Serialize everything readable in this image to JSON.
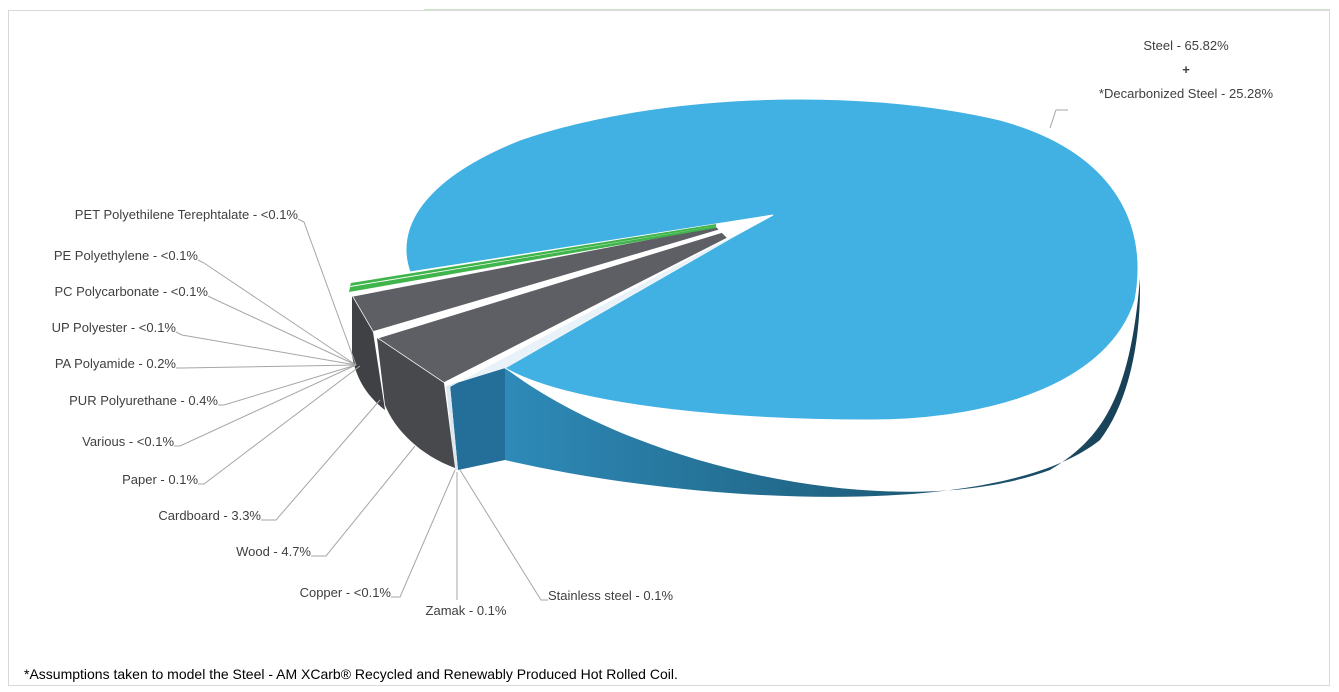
{
  "chart_data": {
    "type": "pie",
    "style": "3d-exploded",
    "slices": [
      {
        "label": "Steel - 65.82%",
        "label2": "+",
        "label3": "*Decarbonized Steel - 25.28%",
        "value": 91.1,
        "color": "#41b0e2"
      },
      {
        "label": "Stainless steel - 0.1%",
        "value": 0.1,
        "color": "#2a7aa8"
      },
      {
        "label": "Zamak - 0.1%",
        "value": 0.1,
        "color": "#8ac6e8"
      },
      {
        "label": "Copper - <0.1%",
        "value": 0.05,
        "color": "#c1d9e8"
      },
      {
        "label": "Wood - 4.7%",
        "value": 4.7,
        "color": "#5d5f64"
      },
      {
        "label": "Cardboard - 3.3%",
        "value": 3.3,
        "color": "#5d5f64"
      },
      {
        "label": "Paper - 0.1%",
        "value": 0.1,
        "color": "#6b6d72"
      },
      {
        "label": "Various - <0.1%",
        "value": 0.05,
        "color": "#6b6d72"
      },
      {
        "label": "PUR Polyurethane - 0.4%",
        "value": 0.4,
        "color": "#5d5f64"
      },
      {
        "label": "PA Polyamide - 0.2%",
        "value": 0.2,
        "color": "#5d5f64"
      },
      {
        "label": "UP Polyester - <0.1%",
        "value": 0.05,
        "color": "#5d5f64"
      },
      {
        "label": "PC Polycarbonate - <0.1%",
        "value": 0.05,
        "color": "#5d5f64"
      },
      {
        "label": "PE Polyethylene - <0.1%",
        "value": 0.05,
        "color": "#3fb54b"
      },
      {
        "label": "PET Polyethilene Terephtalate - <0.1%",
        "value": 0.05,
        "color": "#3fb54b"
      }
    ]
  },
  "footnote": "*Assumptions taken to model the Steel - AM XCarb® Recycled and Renewably Produced Hot Rolled Coil."
}
